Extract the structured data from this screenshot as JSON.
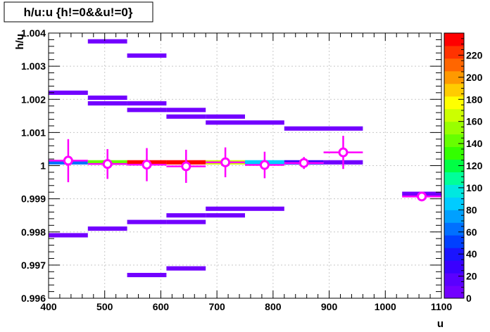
{
  "chart_data": {
    "type": "heatmap",
    "title": "h/u:u {h!=0&&u!=0}",
    "xlabel": "u",
    "ylabel": "h/u",
    "xlim": [
      400,
      1100
    ],
    "ylim": [
      0.996,
      1.004
    ],
    "x_ticks": [
      "400",
      "500",
      "600",
      "700",
      "800",
      "900",
      "1000",
      "1100"
    ],
    "x_tick_values": [
      400,
      500,
      600,
      700,
      800,
      900,
      1000,
      1100
    ],
    "y_ticks": [
      "0.996",
      "0.997",
      "0.998",
      "0.999",
      "1",
      "1.001",
      "1.002",
      "1.003",
      "1.004"
    ],
    "y_tick_values": [
      0.996,
      0.997,
      0.998,
      0.999,
      1.0,
      1.001,
      1.002,
      1.003,
      1.004
    ],
    "grid": true,
    "colorbar": {
      "min": 0,
      "max": 240,
      "tick_labels": [
        "0",
        "20",
        "40",
        "60",
        "80",
        "100",
        "120",
        "140",
        "160",
        "180",
        "200",
        "220"
      ],
      "tick_values": [
        0,
        20,
        40,
        60,
        80,
        100,
        120,
        140,
        160,
        180,
        200,
        220
      ],
      "colors": [
        "#7200ff",
        "#5a00ff",
        "#3a00ff",
        "#1a14ff",
        "#0040ff",
        "#0070ff",
        "#00a0ff",
        "#00ccff",
        "#00e8e0",
        "#00ff99",
        "#00ff44",
        "#33ff00",
        "#66ff00",
        "#99ff00",
        "#ccff00",
        "#ffff00",
        "#ffcc00",
        "#ff9900",
        "#ff6600",
        "#ff3300",
        "#ff0000"
      ]
    },
    "cells": [
      {
        "x0": 400,
        "x1": 470,
        "y": 1.0022,
        "v": 6
      },
      {
        "x0": 470,
        "x1": 540,
        "y": 1.00375,
        "v": 6
      },
      {
        "x0": 540,
        "x1": 610,
        "y": 1.00332,
        "v": 6
      },
      {
        "x0": 470,
        "x1": 540,
        "y": 1.00205,
        "v": 6
      },
      {
        "x0": 470,
        "x1": 540,
        "y": 1.00188,
        "v": 6
      },
      {
        "x0": 540,
        "x1": 610,
        "y": 1.00188,
        "v": 6
      },
      {
        "x0": 540,
        "x1": 610,
        "y": 1.00168,
        "v": 6
      },
      {
        "x0": 610,
        "x1": 680,
        "y": 1.00168,
        "v": 6
      },
      {
        "x0": 610,
        "x1": 680,
        "y": 1.00148,
        "v": 6
      },
      {
        "x0": 680,
        "x1": 750,
        "y": 1.00148,
        "v": 6
      },
      {
        "x0": 680,
        "x1": 750,
        "y": 1.0013,
        "v": 6
      },
      {
        "x0": 750,
        "x1": 820,
        "y": 1.0013,
        "v": 6
      },
      {
        "x0": 820,
        "x1": 960,
        "y": 1.00112,
        "v": 6
      },
      {
        "x0": 400,
        "x1": 470,
        "y": 1.0001,
        "v": 60
      },
      {
        "x0": 470,
        "x1": 540,
        "y": 1.0001,
        "v": 140
      },
      {
        "x0": 540,
        "x1": 610,
        "y": 1.0001,
        "v": 230
      },
      {
        "x0": 610,
        "x1": 680,
        "y": 1.0001,
        "v": 235
      },
      {
        "x0": 680,
        "x1": 750,
        "y": 1.0001,
        "v": 160
      },
      {
        "x0": 750,
        "x1": 820,
        "y": 1.0001,
        "v": 80
      },
      {
        "x0": 820,
        "x1": 890,
        "y": 1.0001,
        "v": 25
      },
      {
        "x0": 890,
        "x1": 960,
        "y": 1.0001,
        "v": 6
      },
      {
        "x0": 1030,
        "x1": 1100,
        "y": 0.99915,
        "v": 6
      },
      {
        "x0": 400,
        "x1": 470,
        "y": 0.9979,
        "v": 6
      },
      {
        "x0": 470,
        "x1": 540,
        "y": 0.9981,
        "v": 6
      },
      {
        "x0": 540,
        "x1": 610,
        "y": 0.9983,
        "v": 6
      },
      {
        "x0": 610,
        "x1": 680,
        "y": 0.9983,
        "v": 6
      },
      {
        "x0": 610,
        "x1": 680,
        "y": 0.9985,
        "v": 6
      },
      {
        "x0": 680,
        "x1": 750,
        "y": 0.9985,
        "v": 6
      },
      {
        "x0": 680,
        "x1": 750,
        "y": 0.9987,
        "v": 6
      },
      {
        "x0": 750,
        "x1": 820,
        "y": 0.9987,
        "v": 6
      },
      {
        "x0": 540,
        "x1": 610,
        "y": 0.9967,
        "v": 6
      },
      {
        "x0": 610,
        "x1": 680,
        "y": 0.9969,
        "v": 6
      }
    ],
    "profile": [
      {
        "x": 435,
        "y": 1.00015,
        "ey": 0.00065
      },
      {
        "x": 505,
        "y": 1.00005,
        "ey": 0.00045
      },
      {
        "x": 575,
        "y": 1.00003,
        "ey": 0.0005
      },
      {
        "x": 645,
        "y": 0.99998,
        "ey": 0.0005
      },
      {
        "x": 715,
        "y": 1.0001,
        "ey": 0.00045
      },
      {
        "x": 785,
        "y": 1.00002,
        "ey": 0.0004
      },
      {
        "x": 855,
        "y": 1.00008,
        "ey": 0.00018
      },
      {
        "x": 925,
        "y": 1.0004,
        "ey": 0.0005
      },
      {
        "x": 1065,
        "y": 0.99907,
        "ey": 5e-05
      }
    ]
  }
}
